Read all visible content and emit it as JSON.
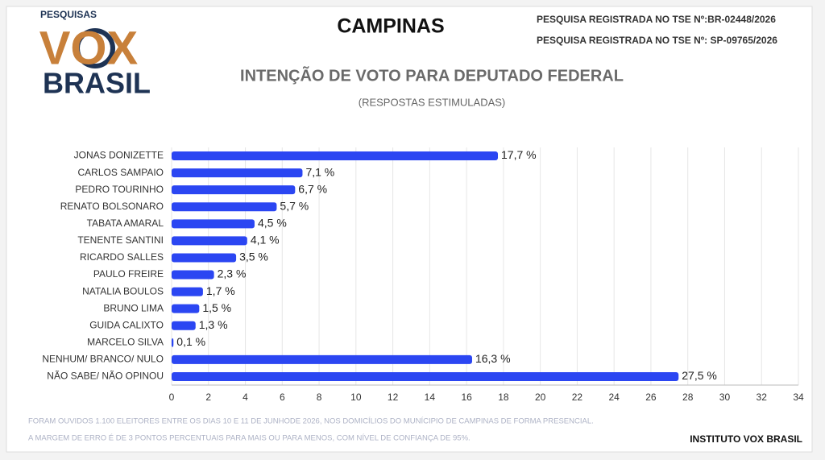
{
  "logo": {
    "top": "PESQUISAS",
    "main": "VOX",
    "bottom": "BRASIL"
  },
  "header": {
    "city": "CAMPINAS",
    "registration_1": "PESQUISA REGISTRADA NO TSE Nº:BR-02448/2026",
    "registration_2": "PESQUISA REGISTRADA NO TSE Nº: SP-09765/2026"
  },
  "chart_data": {
    "type": "bar",
    "orientation": "horizontal",
    "title": "INTENÇÃO DE VOTO PARA DEPUTADO FEDERAL",
    "subtitle": "(RESPOSTAS ESTIMULADAS)",
    "categories": [
      "JONAS DONIZETTE",
      "CARLOS SAMPAIO",
      "PEDRO TOURINHO",
      "RENATO BOLSONARO",
      "TABATA AMARAL",
      "TENENTE SANTINI",
      "RICARDO SALLES",
      "PAULO FREIRE",
      "NATALIA BOULOS",
      "BRUNO LIMA",
      "GUIDA CALIXTO",
      "MARCELO SILVA",
      "NENHUM/ BRANCO/ NULO",
      "NÃO SABE/ NÃO OPINOU"
    ],
    "values": [
      17.7,
      7.1,
      6.7,
      5.7,
      4.5,
      4.1,
      3.5,
      2.3,
      1.7,
      1.5,
      1.3,
      0.1,
      16.3,
      27.5
    ],
    "value_labels": [
      "17,7 %",
      "7,1 %",
      "6,7 %",
      "5,7 %",
      "4,5 %",
      "4,1 %",
      "3,5 %",
      "2,3 %",
      "1,7 %",
      "1,5 %",
      "1,3 %",
      "0,1 %",
      "16,3 %",
      "27,5 %"
    ],
    "color": "#2b46f2",
    "xlim": [
      0,
      34
    ],
    "xticks": [
      0,
      2,
      4,
      6,
      8,
      10,
      12,
      14,
      16,
      18,
      20,
      22,
      24,
      26,
      28,
      30,
      32,
      34
    ],
    "grid": true
  },
  "footer": {
    "note_1": "FORAM OUVIDOS 1.100 ELEITORES ENTRE OS DIAS 10 E 11 DE JUNHODE 2026, NOS DOMICÍLIOS DO MUNÍCIPIO DE CAMPINAS DE FORMA PRESENCIAL.",
    "note_2": "A MARGEM DE ERRO É DE 3 PONTOS PERCENTUAIS PARA MAIS OU PARA MENOS, COM NÍVEL DE CONFIANÇA DE 95%.",
    "source": "INSTITUTO VOX BRASIL"
  }
}
